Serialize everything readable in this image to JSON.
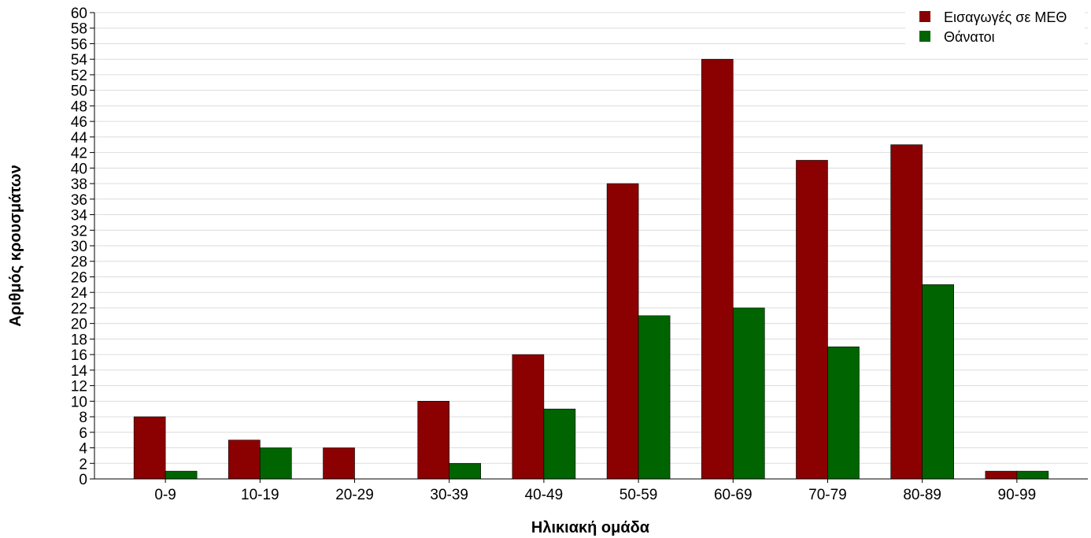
{
  "chart_data": {
    "type": "bar",
    "categories": [
      "0-9",
      "10-19",
      "20-29",
      "30-39",
      "40-49",
      "50-59",
      "60-69",
      "70-79",
      "80-89",
      "90-99"
    ],
    "series": [
      {
        "name": "Εισαγωγές σε ΜΕΘ",
        "color": "#8b0000",
        "values": [
          8,
          5,
          4,
          10,
          16,
          38,
          54,
          41,
          43,
          1
        ]
      },
      {
        "name": "Θάνατοι",
        "color": "#006400",
        "values": [
          1,
          4,
          0,
          2,
          9,
          21,
          22,
          17,
          25,
          1
        ]
      }
    ],
    "xlabel": "Ηλικιακή ομάδα",
    "ylabel": "Αριθμός κρουσμάτων",
    "ylim": [
      0,
      60
    ],
    "ytick_step": 2,
    "grid": true,
    "legend_position": "top-right"
  }
}
